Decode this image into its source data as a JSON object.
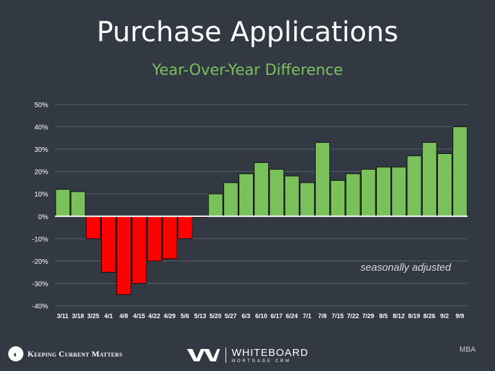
{
  "header": {
    "title": "Purchase Applications",
    "subtitle": "Year-Over-Year Difference"
  },
  "colors": {
    "background": "#323943",
    "positive": "#7ac15c",
    "negative": "#ff0000",
    "subtitle": "#7ac15c",
    "gridline": "#5a616b"
  },
  "chart_data": {
    "type": "bar",
    "title": "Purchase Applications",
    "subtitle": "Year-Over-Year Difference",
    "categories": [
      "3/11",
      "3/18",
      "3/25",
      "4/1",
      "4/8",
      "4/15",
      "4/22",
      "4/29",
      "5/6",
      "5/13",
      "5/20",
      "5/27",
      "6/3",
      "6/10",
      "6/17",
      "6/24",
      "7/1",
      "7/8",
      "7/15",
      "7/22",
      "7/29",
      "8/5",
      "8/12",
      "8/19",
      "8/26",
      "9/2",
      "9/9"
    ],
    "values": [
      12,
      11,
      -10,
      -25,
      -35,
      -30,
      -20,
      -19,
      -10,
      -0.5,
      10,
      15,
      19,
      24,
      21,
      18,
      15,
      33,
      16,
      19,
      21,
      22,
      22,
      27,
      33,
      28,
      40
    ],
    "unit": "%",
    "ylim": [
      -40,
      50
    ],
    "yticks": [
      "50%",
      "40%",
      "30%",
      "20%",
      "10%",
      "0%",
      "-10%",
      "-20%",
      "-30%",
      "-40%"
    ],
    "ytick_values": [
      50,
      40,
      30,
      20,
      10,
      0,
      -10,
      -20,
      -30,
      -40
    ],
    "grid": true,
    "annotation": "seasonally adjusted"
  },
  "footer": {
    "left_logo_text": "Keeping Current Matters",
    "left_logo_icon": "kcm-circle-icon",
    "center_logo_name": "WHITEBOARD",
    "center_logo_sub": "MORTGAGE CRM",
    "source": "MBA"
  }
}
